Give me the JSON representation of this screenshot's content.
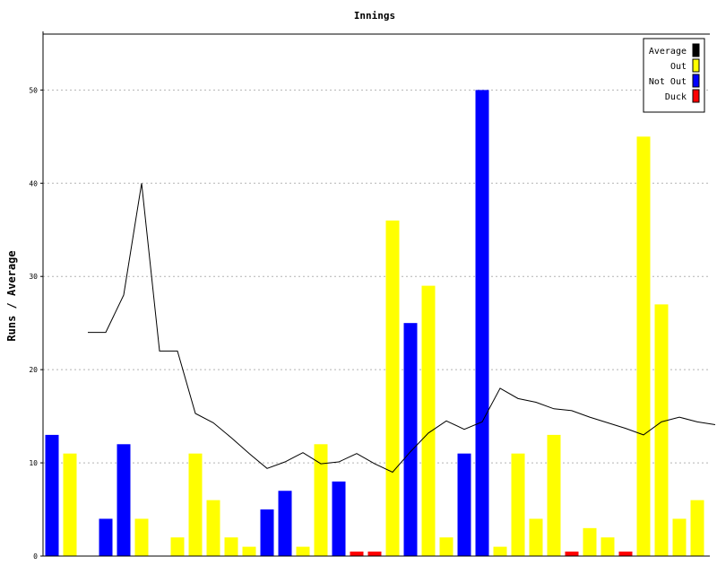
{
  "chart_data": {
    "type": "bar",
    "title": "Innings",
    "xlabel": "",
    "ylabel": "Runs / Average",
    "ylim": [
      0,
      56
    ],
    "yticks": [
      0,
      10,
      20,
      30,
      40,
      50
    ],
    "grid": true,
    "legend_position": "top-right",
    "legend": [
      {
        "label": "Average",
        "color": "#000000"
      },
      {
        "label": "Out",
        "color": "#ffff00"
      },
      {
        "label": "Not Out",
        "color": "#0000ff"
      },
      {
        "label": "Duck",
        "color": "#ff0000"
      }
    ],
    "innings": [
      {
        "runs": 13,
        "result": "Not Out"
      },
      {
        "runs": 11,
        "result": "Out"
      },
      {
        "runs": 0,
        "result": "None"
      },
      {
        "runs": 4,
        "result": "Not Out"
      },
      {
        "runs": 12,
        "result": "Not Out"
      },
      {
        "runs": 4,
        "result": "Out"
      },
      {
        "runs": 0,
        "result": "None"
      },
      {
        "runs": 2,
        "result": "Out"
      },
      {
        "runs": 11,
        "result": "Out"
      },
      {
        "runs": 6,
        "result": "Out"
      },
      {
        "runs": 2,
        "result": "Out"
      },
      {
        "runs": 1,
        "result": "Out"
      },
      {
        "runs": 5,
        "result": "Not Out"
      },
      {
        "runs": 7,
        "result": "Not Out"
      },
      {
        "runs": 1,
        "result": "Out"
      },
      {
        "runs": 12,
        "result": "Out"
      },
      {
        "runs": 8,
        "result": "Not Out"
      },
      {
        "runs": 0,
        "result": "Duck"
      },
      {
        "runs": 0,
        "result": "Duck"
      },
      {
        "runs": 36,
        "result": "Out"
      },
      {
        "runs": 25,
        "result": "Not Out"
      },
      {
        "runs": 29,
        "result": "Out"
      },
      {
        "runs": 2,
        "result": "Out"
      },
      {
        "runs": 11,
        "result": "Not Out"
      },
      {
        "runs": 50,
        "result": "Not Out"
      },
      {
        "runs": 1,
        "result": "Out"
      },
      {
        "runs": 11,
        "result": "Out"
      },
      {
        "runs": 4,
        "result": "Out"
      },
      {
        "runs": 13,
        "result": "Out"
      },
      {
        "runs": 0,
        "result": "Duck"
      },
      {
        "runs": 3,
        "result": "Out"
      },
      {
        "runs": 2,
        "result": "Out"
      },
      {
        "runs": 0,
        "result": "Duck"
      },
      {
        "runs": 45,
        "result": "Out"
      },
      {
        "runs": 27,
        "result": "Out"
      },
      {
        "runs": 4,
        "result": "Out"
      },
      {
        "runs": 6,
        "result": "Out"
      }
    ],
    "average_series": {
      "name": "Average",
      "values": [
        null,
        24,
        24,
        28,
        40,
        22,
        22,
        15.3,
        14.3,
        12.7,
        11,
        9.4,
        10.1,
        11.1,
        9.9,
        10.1,
        11,
        9.9,
        9,
        11.2,
        13.2,
        14.5,
        13.6,
        14.4,
        18,
        16.9,
        16.5,
        15.8,
        15.6,
        14.9,
        14.3,
        13.7,
        13,
        14.4,
        14.9,
        14.4,
        14.1
      ]
    }
  }
}
